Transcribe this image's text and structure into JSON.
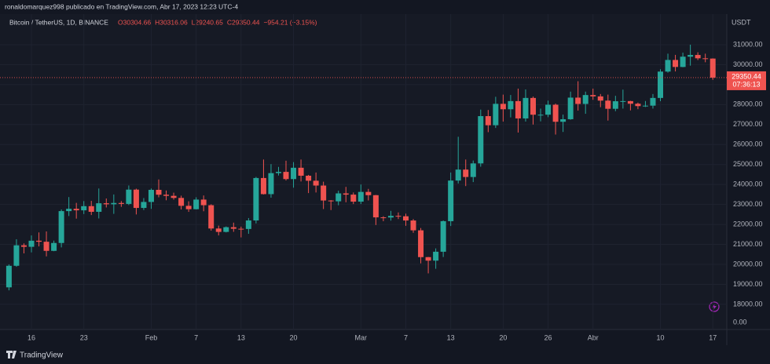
{
  "header": {
    "publisher": "ronaldomarquez998 publicado en TradingView.com, Abr 17, 2023 12:23 UTC-4",
    "brand": "TradingView"
  },
  "chart_data": {
    "type": "candlestick",
    "symbol": "Bitcoin / TetherUS, 1D, BINANCE",
    "ohlc_text": [
      "O30304.66",
      "H30316.06",
      "L29240.65",
      "C29350.44",
      "−954.21 (−3.15%)"
    ],
    "y_unit": "USDT",
    "price_label": {
      "price": "29350.44",
      "countdown": "07:36:13"
    },
    "yaxis_bottom_label": "0.00",
    "up_color": "#26a69a",
    "down_color": "#ef5350",
    "ylim": [
      16740,
      32530
    ],
    "yticks": [
      {
        "value": 18000,
        "label": "18000.00"
      },
      {
        "value": 19000,
        "label": "19000.00"
      },
      {
        "value": 20000,
        "label": "20000.00"
      },
      {
        "value": 21000,
        "label": "21000.00"
      },
      {
        "value": 22000,
        "label": "22000.00"
      },
      {
        "value": 23000,
        "label": "23000.00"
      },
      {
        "value": 24000,
        "label": "24000.00"
      },
      {
        "value": 25000,
        "label": "25000.00"
      },
      {
        "value": 26000,
        "label": "26000.00"
      },
      {
        "value": 27000,
        "label": "27000.00"
      },
      {
        "value": 28000,
        "label": "28000.00"
      },
      {
        "value": 29000,
        "label": "29000.00"
      },
      {
        "value": 30000,
        "label": "30000.00"
      },
      {
        "value": 31000,
        "label": "31000.00"
      }
    ],
    "grid": true,
    "categories": [
      null,
      null,
      null,
      "16",
      null,
      null,
      null,
      null,
      null,
      null,
      "23",
      null,
      null,
      null,
      null,
      null,
      null,
      null,
      null,
      "Feb",
      null,
      null,
      null,
      null,
      null,
      "7",
      null,
      null,
      null,
      null,
      null,
      "13",
      null,
      null,
      null,
      null,
      null,
      null,
      "20",
      null,
      null,
      null,
      null,
      null,
      null,
      null,
      null,
      "Mar",
      null,
      null,
      null,
      null,
      null,
      "7",
      null,
      null,
      null,
      null,
      null,
      "13",
      null,
      null,
      null,
      null,
      null,
      null,
      "20",
      null,
      null,
      null,
      null,
      null,
      "26",
      null,
      null,
      null,
      null,
      null,
      "Abr",
      null,
      null,
      null,
      null,
      null,
      null,
      null,
      null,
      "10",
      null,
      null,
      null,
      null,
      null,
      null,
      "17"
    ],
    "ohlc": [
      [
        18850,
        19995,
        18700,
        19930
      ],
      [
        19930,
        21258,
        19880,
        20955
      ],
      [
        20955,
        21050,
        20550,
        20880
      ],
      [
        20880,
        21450,
        20600,
        21185
      ],
      [
        21185,
        21600,
        20900,
        21133
      ],
      [
        21133,
        21650,
        20400,
        20677
      ],
      [
        20677,
        21190,
        20660,
        21071
      ],
      [
        21071,
        22750,
        20850,
        22667
      ],
      [
        22667,
        23370,
        22420,
        22783
      ],
      [
        22783,
        23080,
        22290,
        22707
      ],
      [
        22707,
        23170,
        22520,
        22916
      ],
      [
        22916,
        23180,
        22470,
        22632
      ],
      [
        22632,
        23800,
        22300,
        23060
      ],
      [
        23060,
        23300,
        22850,
        23009
      ],
      [
        23009,
        23500,
        22530,
        23074
      ],
      [
        23074,
        23170,
        22880,
        23027
      ],
      [
        23027,
        23950,
        22970,
        23743
      ],
      [
        23743,
        23790,
        22500,
        22826
      ],
      [
        22826,
        23320,
        22720,
        23125
      ],
      [
        23125,
        23800,
        22780,
        23732
      ],
      [
        23732,
        24250,
        23360,
        23488
      ],
      [
        23488,
        23700,
        23210,
        23431
      ],
      [
        23431,
        23590,
        23240,
        23327
      ],
      [
        23327,
        23440,
        22750,
        22932
      ],
      [
        22932,
        23160,
        22630,
        22762
      ],
      [
        22762,
        23360,
        22750,
        23244
      ],
      [
        23244,
        23450,
        22660,
        22963
      ],
      [
        22963,
        23010,
        21690,
        21796
      ],
      [
        21796,
        21940,
        21450,
        21626
      ],
      [
        21626,
        21900,
        21600,
        21862
      ],
      [
        21862,
        22090,
        21630,
        21783
      ],
      [
        21783,
        21890,
        21350,
        21773
      ],
      [
        21773,
        22320,
        21530,
        22199
      ],
      [
        22199,
        24380,
        22050,
        24324
      ],
      [
        24324,
        25250,
        23500,
        23517
      ],
      [
        23517,
        25020,
        23340,
        24569
      ],
      [
        24569,
        24880,
        24450,
        24631
      ],
      [
        24631,
        25190,
        24200,
        24271
      ],
      [
        24271,
        25120,
        23840,
        24838
      ],
      [
        24838,
        25250,
        24150,
        24439
      ],
      [
        24439,
        24480,
        23570,
        24188
      ],
      [
        24188,
        24600,
        23600,
        23947
      ],
      [
        23947,
        24140,
        22770,
        23198
      ],
      [
        23198,
        23220,
        22720,
        23157
      ],
      [
        23157,
        23690,
        22960,
        23554
      ],
      [
        23554,
        23880,
        23110,
        23492
      ],
      [
        23492,
        23600,
        23020,
        23141
      ],
      [
        23141,
        24000,
        23020,
        23628
      ],
      [
        23628,
        23780,
        23200,
        23465
      ],
      [
        23465,
        23476,
        21970,
        22354
      ],
      [
        22354,
        22410,
        22160,
        22346
      ],
      [
        22346,
        22680,
        22190,
        22430
      ],
      [
        22430,
        22600,
        22270,
        22409
      ],
      [
        22409,
        22540,
        21930,
        22197
      ],
      [
        22197,
        22270,
        21580,
        21705
      ],
      [
        21705,
        21820,
        20050,
        20363
      ],
      [
        20363,
        20370,
        19550,
        20187
      ],
      [
        20187,
        20800,
        19780,
        20633
      ],
      [
        20633,
        22200,
        20370,
        22163
      ],
      [
        22163,
        24600,
        21920,
        24197
      ],
      [
        24197,
        26390,
        24050,
        24746
      ],
      [
        24746,
        25250,
        23920,
        24375
      ],
      [
        24375,
        25200,
        24120,
        25055
      ],
      [
        25055,
        27750,
        24890,
        27423
      ],
      [
        27423,
        27730,
        26620,
        26966
      ],
      [
        26966,
        28390,
        26830,
        28038
      ],
      [
        28038,
        28500,
        27150,
        27767
      ],
      [
        27767,
        28480,
        27360,
        28175
      ],
      [
        28175,
        28800,
        26600,
        27307
      ],
      [
        27307,
        28760,
        27150,
        28333
      ],
      [
        28333,
        28400,
        27000,
        27493
      ],
      [
        27493,
        27800,
        27160,
        27494
      ],
      [
        27494,
        28200,
        27370,
        27994
      ],
      [
        27994,
        28050,
        26500,
        27140
      ],
      [
        27140,
        27500,
        26630,
        27268
      ],
      [
        27268,
        28650,
        27240,
        28349
      ],
      [
        28349,
        29170,
        27700,
        28033
      ],
      [
        28033,
        28650,
        27540,
        28478
      ],
      [
        28478,
        28800,
        28240,
        28411
      ],
      [
        28411,
        28530,
        27870,
        28199
      ],
      [
        28199,
        28500,
        27200,
        27790
      ],
      [
        27790,
        28440,
        27670,
        28168
      ],
      [
        28168,
        28750,
        27800,
        28175
      ],
      [
        28175,
        28190,
        27710,
        28044
      ],
      [
        28044,
        28100,
        27770,
        27925
      ],
      [
        27925,
        28180,
        27880,
        27947
      ],
      [
        27947,
        28530,
        27800,
        28333
      ],
      [
        28333,
        29770,
        28170,
        29653
      ],
      [
        29653,
        30550,
        29600,
        30235
      ],
      [
        30235,
        30490,
        29660,
        29884
      ],
      [
        29884,
        30600,
        29870,
        30399
      ],
      [
        30399,
        31000,
        29950,
        30485
      ],
      [
        30485,
        30620,
        30230,
        30318
      ],
      [
        30318,
        30550,
        30120,
        30304
      ],
      [
        30304.66,
        30316.06,
        29240.65,
        29350.44
      ]
    ]
  }
}
